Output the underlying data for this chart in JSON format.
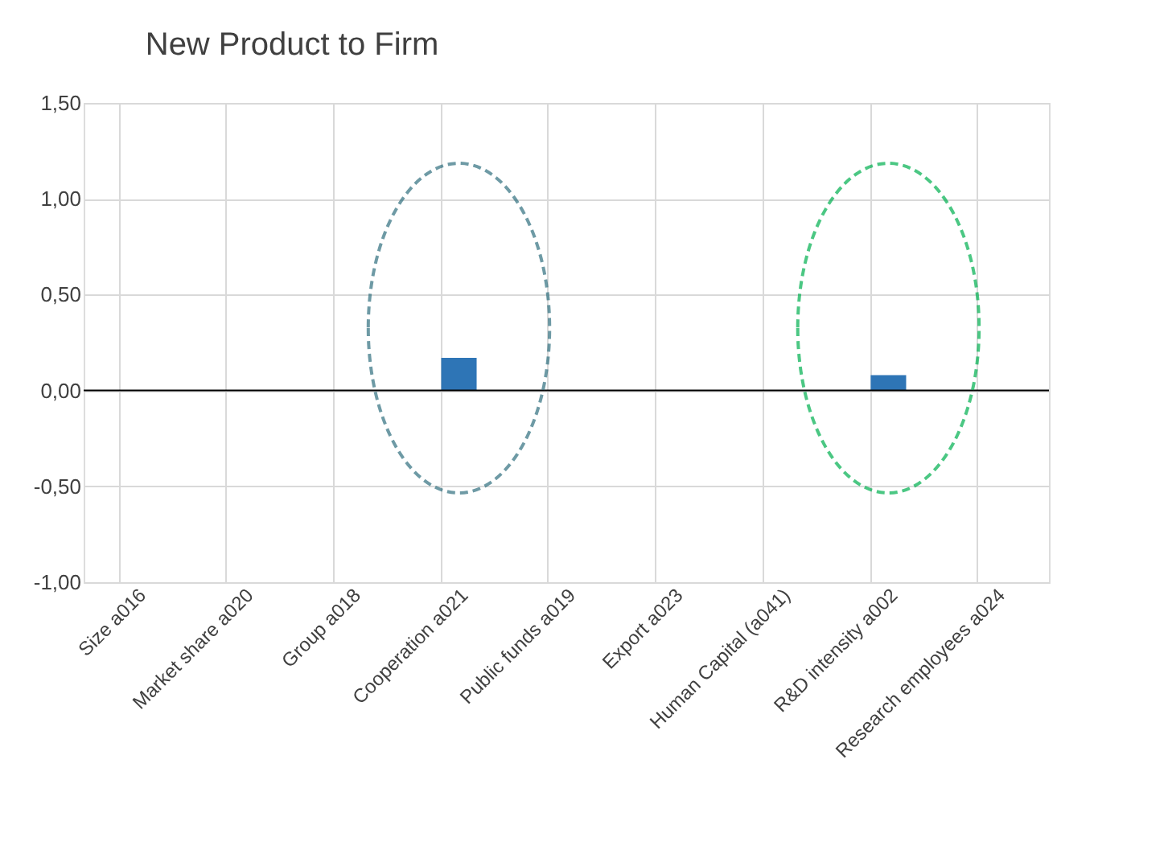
{
  "chart_data": {
    "type": "bar",
    "title": "New Product to Firm",
    "categories": [
      "Size a016",
      "Market share a020",
      "Group a018",
      "Cooperation a021",
      "Public funds  a019",
      "Export  a023",
      "Human Capital (a041)",
      "R&D intensity a002",
      "Research employees  a024"
    ],
    "values": [
      0,
      0,
      0,
      0.17,
      0,
      0,
      0,
      0.08,
      0
    ],
    "color": "#2e75b6",
    "ylim": [
      -1,
      1.5
    ],
    "yticks": [
      {
        "value": -1,
        "label": "-1,00"
      },
      {
        "value": -0.5,
        "label": "-0,50"
      },
      {
        "value": 0,
        "label": "0,00"
      },
      {
        "value": 0.5,
        "label": "0,50"
      },
      {
        "value": 1,
        "label": "1,00"
      },
      {
        "value": 1.5,
        "label": "1,50"
      }
    ],
    "grid": true,
    "ref_lines": [
      {
        "axis": "y",
        "value": 0,
        "color": "#000000"
      }
    ]
  }
}
